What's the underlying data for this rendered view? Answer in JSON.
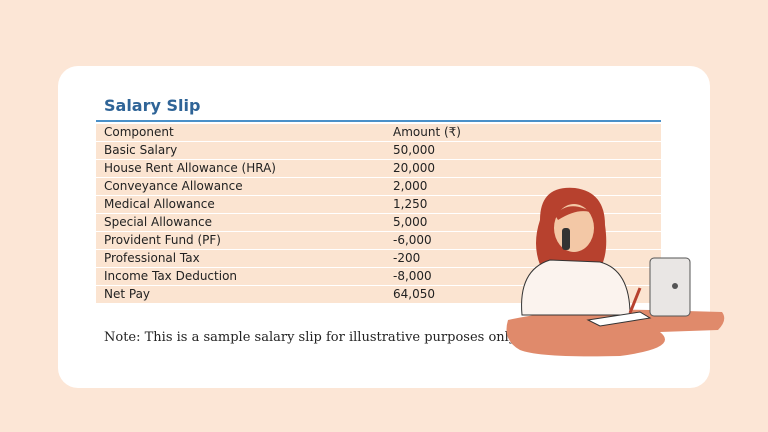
{
  "title": "Salary Slip",
  "table": {
    "header": [
      "Component",
      "Amount (₹)"
    ],
    "rows": [
      [
        "Basic Salary",
        "50,000"
      ],
      [
        "House Rent Allowance (HRA)",
        "20,000"
      ],
      [
        "Conveyance Allowance",
        "2,000"
      ],
      [
        "Medical Allowance",
        "1,250"
      ],
      [
        "Special Allowance",
        "5,000"
      ],
      [
        "Provident Fund (PF)",
        "-6,000"
      ],
      [
        "Professional Tax",
        "-200"
      ],
      [
        "Income Tax Deduction",
        "-8,000"
      ],
      [
        "Net Pay",
        "64,050"
      ]
    ]
  },
  "note": "Note: This is a sample salary slip for illustrative purposes only."
}
